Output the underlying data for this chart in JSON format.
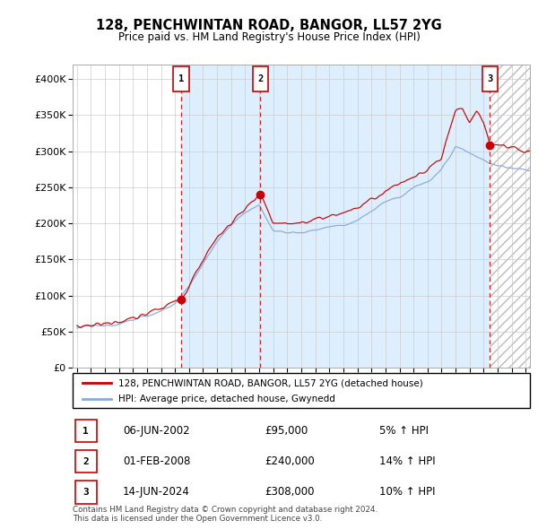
{
  "title": "128, PENCHWINTAN ROAD, BANGOR, LL57 2YG",
  "subtitle": "Price paid vs. HM Land Registry's House Price Index (HPI)",
  "ylim": [
    0,
    420000
  ],
  "yticks": [
    0,
    50000,
    100000,
    150000,
    200000,
    250000,
    300000,
    350000,
    400000
  ],
  "xlim_start": 1994.7,
  "xlim_end": 2027.3,
  "sale_dates": [
    2002.44,
    2008.08,
    2024.45
  ],
  "sale_prices": [
    95000,
    240000,
    308000
  ],
  "sale_labels": [
    "1",
    "2",
    "3"
  ],
  "sale_info": [
    {
      "num": "1",
      "date": "06-JUN-2002",
      "price": "£95,000",
      "hpi": "5% ↑ HPI"
    },
    {
      "num": "2",
      "date": "01-FEB-2008",
      "price": "£240,000",
      "hpi": "14% ↑ HPI"
    },
    {
      "num": "3",
      "date": "14-JUN-2024",
      "price": "£308,000",
      "hpi": "10% ↑ HPI"
    }
  ],
  "legend_line1": "128, PENCHWINTAN ROAD, BANGOR, LL57 2YG (detached house)",
  "legend_line2": "HPI: Average price, detached house, Gwynedd",
  "footer": "Contains HM Land Registry data © Crown copyright and database right 2024.\nThis data is licensed under the Open Government Licence v3.0.",
  "red_color": "#cc0000",
  "blue_color": "#88aadd",
  "grid_color": "#cccccc",
  "shading_color": "#ddeeff",
  "hatch_color": "#bbbbbb"
}
